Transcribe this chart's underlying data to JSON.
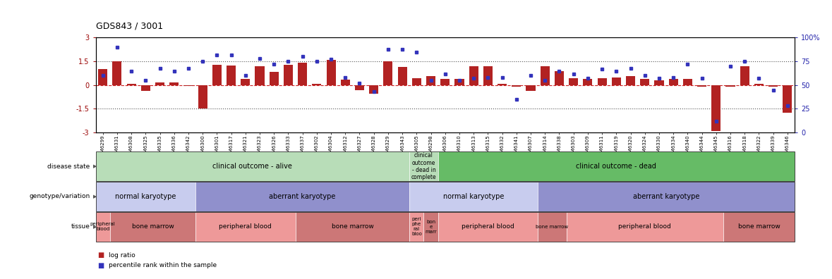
{
  "title": "GDS843 / 3001",
  "samples": [
    "GSM6299",
    "GSM6331",
    "GSM6308",
    "GSM6325",
    "GSM6335",
    "GSM6336",
    "GSM6342",
    "GSM6300",
    "GSM6301",
    "GSM6317",
    "GSM6321",
    "GSM6323",
    "GSM6326",
    "GSM6333",
    "GSM6337",
    "GSM6302",
    "GSM6304",
    "GSM6312",
    "GSM6327",
    "GSM6328",
    "GSM6329",
    "GSM6343",
    "GSM6305",
    "GSM6298",
    "GSM6306",
    "GSM6310",
    "GSM6313",
    "GSM6315",
    "GSM6332",
    "GSM6341",
    "GSM6307",
    "GSM6314",
    "GSM6338",
    "GSM6303",
    "GSM6309",
    "GSM6311",
    "GSM6319",
    "GSM6320",
    "GSM6324",
    "GSM6330",
    "GSM6334",
    "GSM6340",
    "GSM6344",
    "GSM6345",
    "GSM6316",
    "GSM6318",
    "GSM6322",
    "GSM6339",
    "GSM6346"
  ],
  "log_ratio": [
    1.0,
    1.5,
    0.08,
    -0.35,
    0.18,
    0.18,
    -0.05,
    -1.5,
    1.3,
    1.25,
    0.38,
    1.2,
    0.85,
    1.3,
    1.4,
    0.08,
    1.6,
    0.35,
    -0.32,
    -0.55,
    1.5,
    1.15,
    0.45,
    0.55,
    0.38,
    0.38,
    1.2,
    1.2,
    0.08,
    -0.12,
    -0.38,
    1.18,
    0.88,
    0.45,
    0.38,
    0.42,
    0.5,
    0.58,
    0.38,
    0.32,
    0.38,
    0.38,
    -0.1,
    -2.9,
    -0.12,
    1.2,
    0.08,
    -0.1,
    -1.75
  ],
  "percentile": [
    60,
    90,
    65,
    55,
    68,
    65,
    68,
    75,
    82,
    82,
    60,
    78,
    72,
    75,
    80,
    75,
    77,
    58,
    52,
    43,
    88,
    88,
    85,
    55,
    62,
    55,
    57,
    58,
    58,
    35,
    60,
    55,
    65,
    62,
    57,
    67,
    65,
    68,
    60,
    57,
    58,
    72,
    57,
    12,
    70,
    75,
    57,
    45,
    28
  ],
  "ylim_left": [
    -3,
    3
  ],
  "ylim_right": [
    0,
    100
  ],
  "yticks_left": [
    -3,
    -1.5,
    0,
    1.5,
    3
  ],
  "yticks_right": [
    0,
    25,
    50,
    75,
    100
  ],
  "bar_color": "#b22222",
  "dot_color": "#3333bb",
  "hline_color": "#cc2222",
  "dotted_line_color": "#555555",
  "disease_state_groups": [
    {
      "label": "clinical outcome - alive",
      "start": 0,
      "end": 22,
      "color": "#b8ddb8"
    },
    {
      "label": "clinical\noutcome\n- dead in\ncomplete",
      "start": 22,
      "end": 24,
      "color": "#b8ddb8"
    },
    {
      "label": "clinical outcome - dead",
      "start": 24,
      "end": 49,
      "color": "#66bb66"
    }
  ],
  "genotype_groups": [
    {
      "label": "normal karyotype",
      "start": 0,
      "end": 7,
      "color": "#c8ccee"
    },
    {
      "label": "aberrant karyotype",
      "start": 7,
      "end": 22,
      "color": "#9090cc"
    },
    {
      "label": "normal karyotype",
      "start": 22,
      "end": 31,
      "color": "#c8ccee"
    },
    {
      "label": "aberrant karyotype",
      "start": 31,
      "end": 49,
      "color": "#9090cc"
    }
  ],
  "tissue_groups": [
    {
      "label": "peripheral\nblood",
      "start": 0,
      "end": 1,
      "color": "#ee9999"
    },
    {
      "label": "bone marrow",
      "start": 1,
      "end": 7,
      "color": "#cc7777"
    },
    {
      "label": "peripheral blood",
      "start": 7,
      "end": 14,
      "color": "#ee9999"
    },
    {
      "label": "bone marrow",
      "start": 14,
      "end": 22,
      "color": "#cc7777"
    },
    {
      "label": "peri\nphe\nral\nbloo",
      "start": 22,
      "end": 23,
      "color": "#ee9999"
    },
    {
      "label": "bon\ne\nmarr",
      "start": 23,
      "end": 24,
      "color": "#cc7777"
    },
    {
      "label": "peripheral blood",
      "start": 24,
      "end": 31,
      "color": "#ee9999"
    },
    {
      "label": "bone marrow",
      "start": 31,
      "end": 33,
      "color": "#cc7777"
    },
    {
      "label": "peripheral blood",
      "start": 33,
      "end": 44,
      "color": "#ee9999"
    },
    {
      "label": "bone marrow",
      "start": 44,
      "end": 49,
      "color": "#cc7777"
    }
  ],
  "legend": [
    {
      "label": "log ratio",
      "color": "#b22222"
    },
    {
      "label": "percentile rank within the sample",
      "color": "#3333bb"
    }
  ],
  "row_label_positions": [
    {
      "label": "disease state",
      "row": "disease"
    },
    {
      "label": "genotype/variation",
      "row": "genotype"
    },
    {
      "label": "tissue",
      "row": "tissue"
    }
  ]
}
